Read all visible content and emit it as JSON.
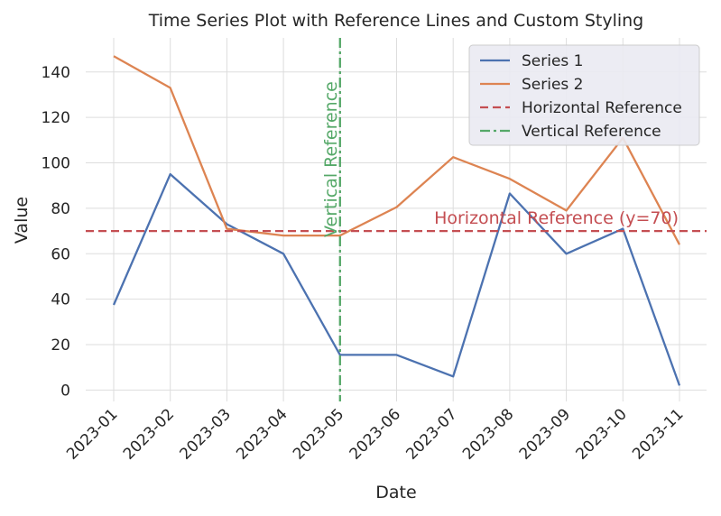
{
  "chart_data": {
    "type": "line",
    "title": "Time Series Plot with Reference Lines and Custom Styling",
    "xlabel": "Date",
    "ylabel": "Value",
    "x": [
      "2023-01",
      "2023-02",
      "2023-03",
      "2023-04",
      "2023-05",
      "2023-06",
      "2023-07",
      "2023-08",
      "2023-09",
      "2023-10",
      "2023-11"
    ],
    "ylim": [
      -5,
      155
    ],
    "yticks": [
      0,
      20,
      40,
      60,
      80,
      100,
      120,
      140
    ],
    "grid": true,
    "legend_position": "top-right",
    "series": [
      {
        "name": "Series 1",
        "color": "#4c72b0",
        "style": "solid",
        "values": [
          37.5,
          95,
          73,
          60,
          15.5,
          15.5,
          6,
          86.5,
          60,
          71,
          2
        ]
      },
      {
        "name": "Series 2",
        "color": "#dd8452",
        "style": "solid",
        "values": [
          147,
          133,
          71,
          68,
          68,
          80.5,
          102.5,
          93,
          79,
          111,
          64
        ]
      }
    ],
    "reference_lines": [
      {
        "name": "Horizontal Reference",
        "orientation": "horizontal",
        "value": 70,
        "color": "#c44e52",
        "style": "dashed",
        "label": "Horizontal Reference (y=70)"
      },
      {
        "name": "Vertical Reference",
        "orientation": "vertical",
        "value": "2023-05",
        "color": "#55a868",
        "style": "dashdot",
        "label": "Vertical Reference"
      }
    ]
  }
}
